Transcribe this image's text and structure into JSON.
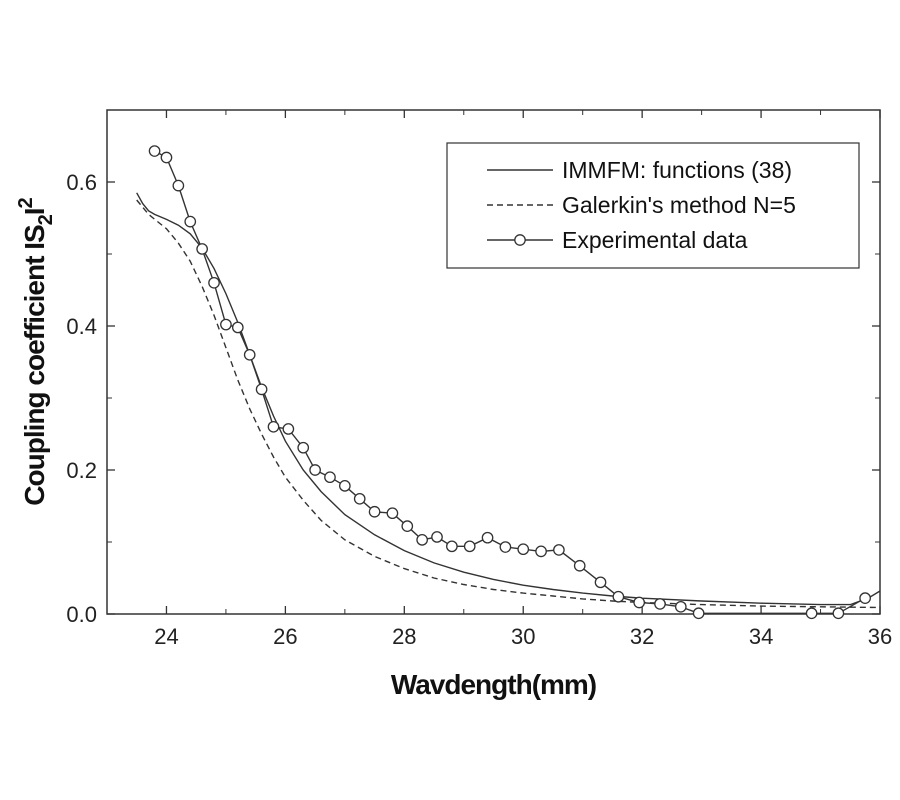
{
  "chart_data": {
    "type": "line",
    "title": "",
    "xlabel": "Wavdength(mm)",
    "ylabel": "Coupling coefficient IS",
    "ylabel_sub": "2",
    "ylabel_tail": "I",
    "ylabel_sup": "2",
    "xlim": [
      23,
      36
    ],
    "ylim": [
      0,
      0.7
    ],
    "x_ticks": [
      24,
      26,
      28,
      30,
      32,
      34,
      36
    ],
    "x_tick_labels": [
      "24",
      "26",
      "28",
      "30",
      "32",
      "34",
      "36"
    ],
    "y_ticks": [
      0.0,
      0.2,
      0.4,
      0.6
    ],
    "y_tick_labels": [
      "0.0",
      "0.2",
      "0.4",
      "0.6"
    ],
    "grid": false,
    "legend_position": "top-right",
    "series": [
      {
        "name": "IMMFM: functions (38)",
        "style": "solid",
        "color": "#333333",
        "x": [
          23.5,
          23.6,
          23.7,
          23.8,
          24.0,
          24.2,
          24.4,
          24.6,
          24.8,
          25.0,
          25.2,
          25.4,
          25.6,
          25.8,
          26.0,
          26.3,
          26.6,
          27.0,
          27.5,
          28.0,
          28.5,
          29.0,
          29.5,
          30.0,
          30.5,
          31.0,
          31.5,
          32.0,
          33.0,
          34.0,
          35.0,
          35.5,
          35.8,
          36.0
        ],
        "y": [
          0.585,
          0.57,
          0.56,
          0.555,
          0.548,
          0.54,
          0.528,
          0.508,
          0.48,
          0.445,
          0.405,
          0.36,
          0.315,
          0.275,
          0.24,
          0.2,
          0.17,
          0.138,
          0.11,
          0.088,
          0.071,
          0.058,
          0.048,
          0.04,
          0.034,
          0.029,
          0.025,
          0.022,
          0.018,
          0.015,
          0.013,
          0.013,
          0.022,
          0.032
        ]
      },
      {
        "name": "Galerkin's method N=5",
        "style": "dashed",
        "color": "#333333",
        "x": [
          23.5,
          23.7,
          24.0,
          24.2,
          24.4,
          24.6,
          24.8,
          25.0,
          25.2,
          25.4,
          25.6,
          25.8,
          26.0,
          26.3,
          26.6,
          27.0,
          27.5,
          28.0,
          28.5,
          29.0,
          29.5,
          30.0,
          30.5,
          31.0,
          31.5,
          32.0,
          33.0,
          34.0,
          35.0,
          36.0
        ],
        "y": [
          0.575,
          0.555,
          0.535,
          0.515,
          0.49,
          0.455,
          0.415,
          0.37,
          0.325,
          0.285,
          0.25,
          0.218,
          0.19,
          0.158,
          0.13,
          0.103,
          0.08,
          0.063,
          0.05,
          0.041,
          0.034,
          0.029,
          0.025,
          0.021,
          0.018,
          0.016,
          0.013,
          0.011,
          0.01,
          0.009
        ]
      },
      {
        "name": "Experimental data",
        "style": "solid-markers",
        "color": "#333333",
        "x": [
          23.8,
          24.0,
          24.2,
          24.4,
          24.6,
          24.8,
          25.0,
          25.2,
          25.4,
          25.6,
          25.8,
          26.05,
          26.3,
          26.5,
          26.75,
          27.0,
          27.25,
          27.5,
          27.8,
          28.05,
          28.3,
          28.55,
          28.8,
          29.1,
          29.4,
          29.7,
          30.0,
          30.3,
          30.6,
          30.95,
          31.3,
          31.6,
          31.95,
          32.3,
          32.65,
          32.95,
          34.85,
          35.3,
          35.75
        ],
        "y": [
          0.643,
          0.634,
          0.595,
          0.545,
          0.507,
          0.46,
          0.402,
          0.398,
          0.36,
          0.312,
          0.26,
          0.257,
          0.231,
          0.2,
          0.19,
          0.178,
          0.16,
          0.142,
          0.14,
          0.122,
          0.103,
          0.107,
          0.094,
          0.094,
          0.106,
          0.093,
          0.09,
          0.087,
          0.089,
          0.067,
          0.044,
          0.024,
          0.016,
          0.014,
          0.01,
          0.001,
          0.001,
          0.001,
          0.022
        ]
      }
    ]
  }
}
